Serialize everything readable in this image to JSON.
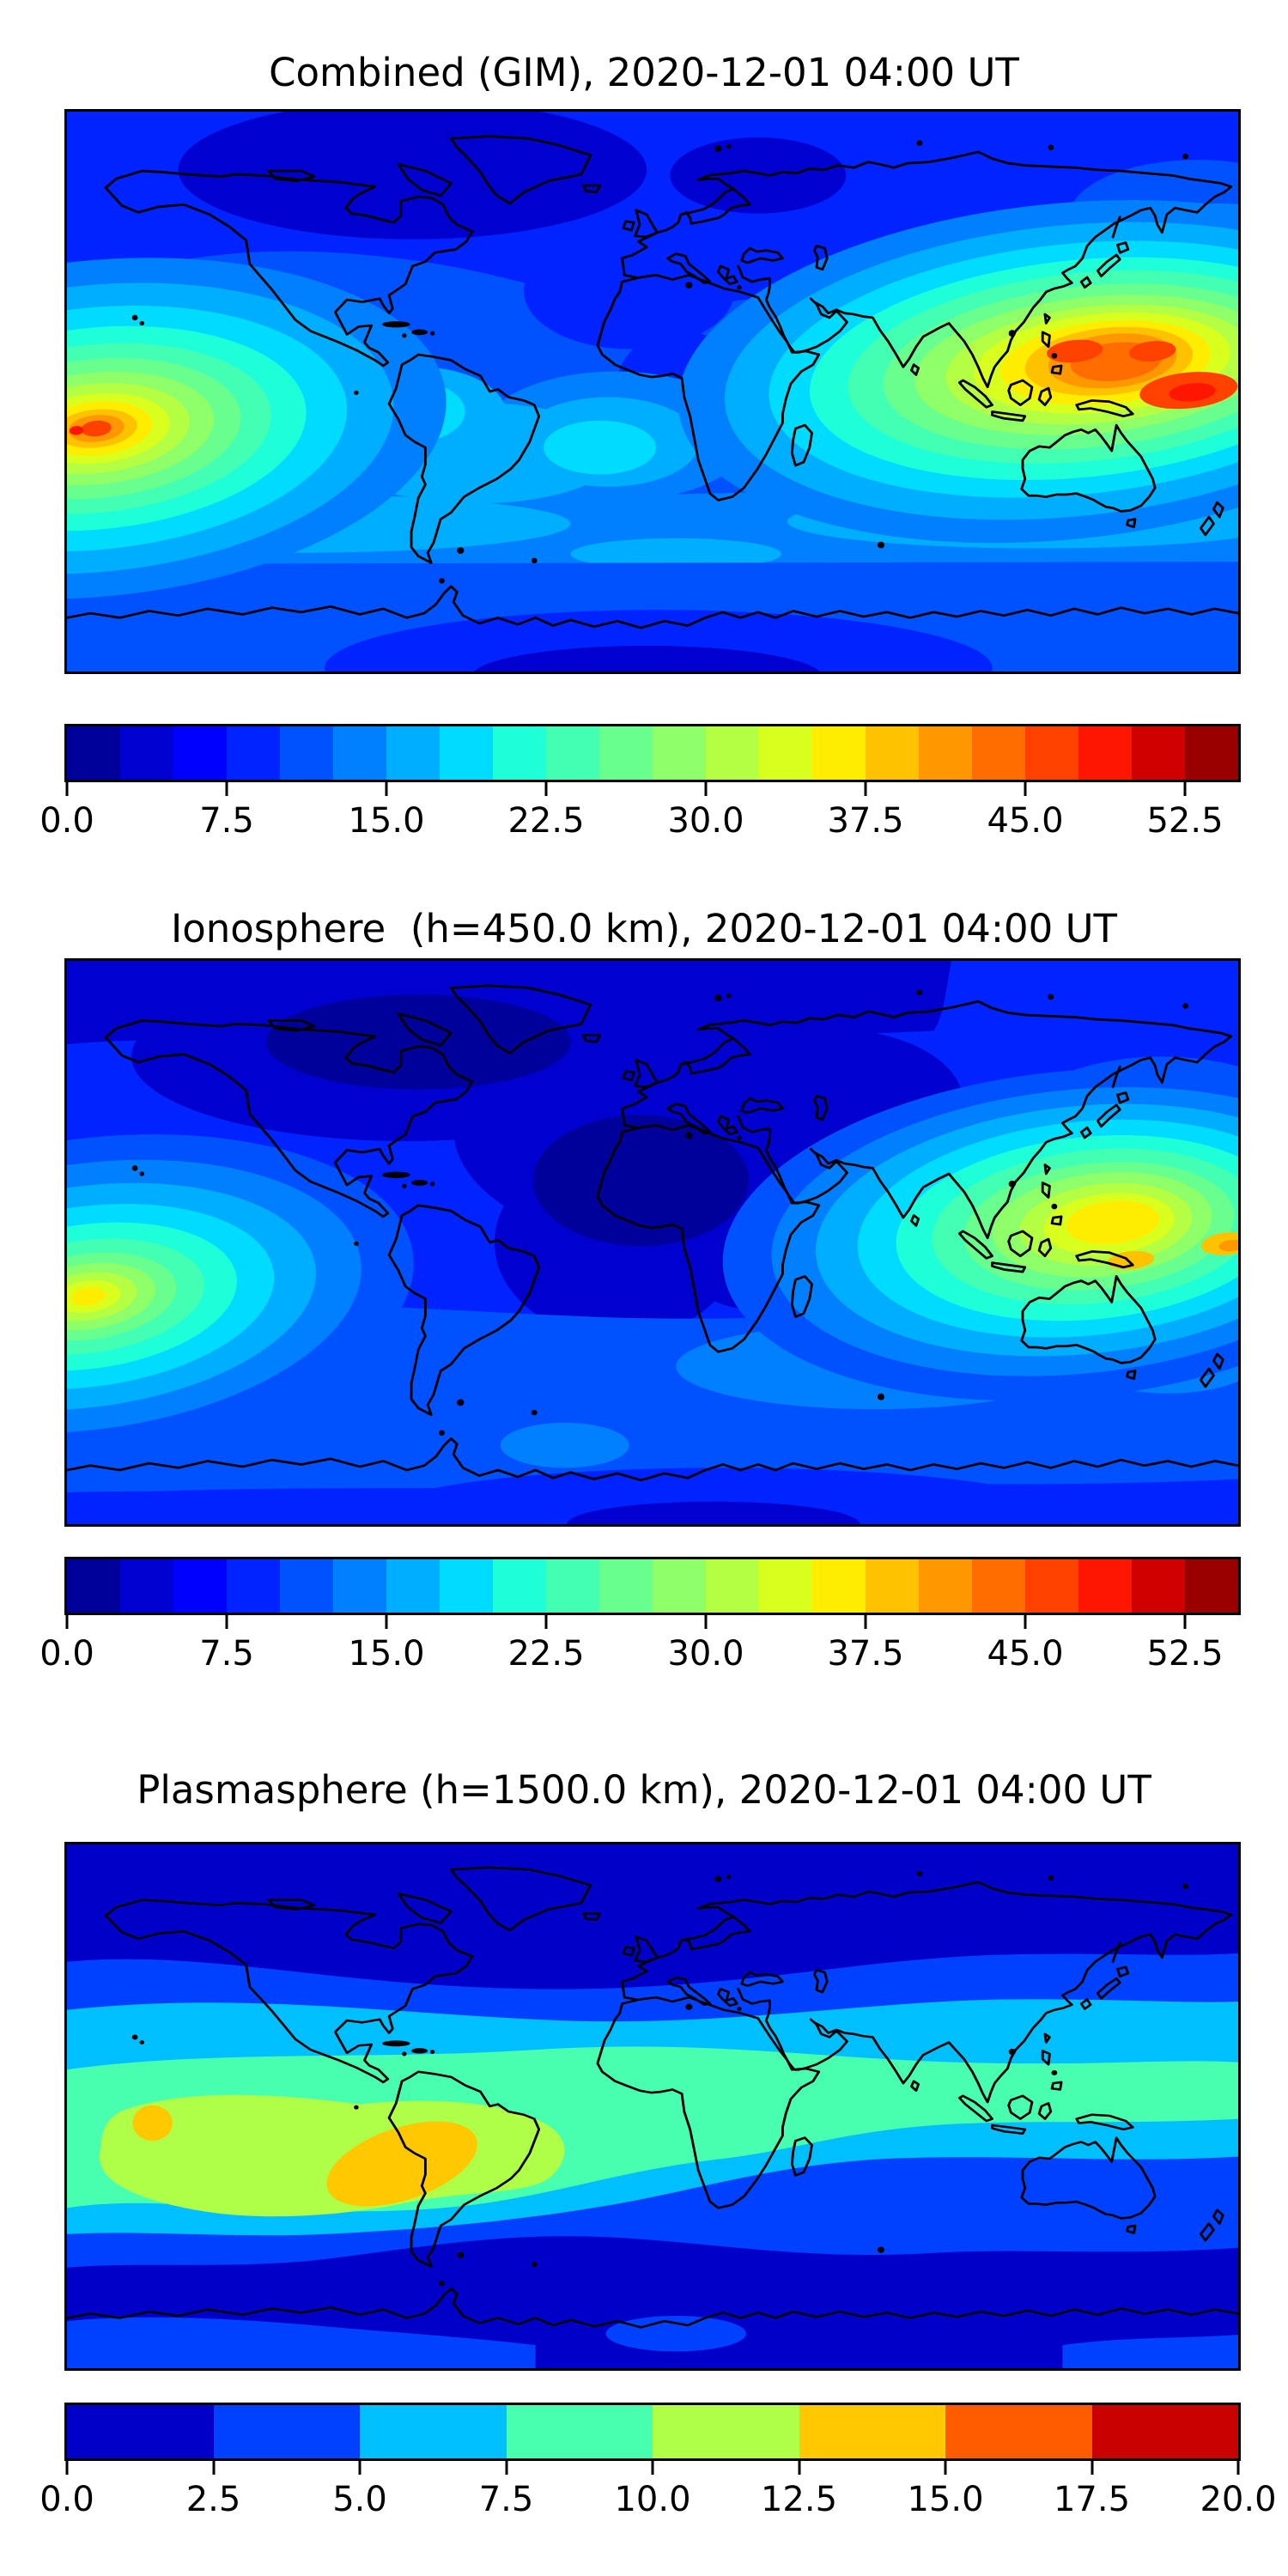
{
  "figure": {
    "background": "#ffffff",
    "text_color": "#000000",
    "coastline_color": "#000000"
  },
  "panels": [
    {
      "title": "Combined (GIM), 2020-12-01 04:00 UT",
      "colorbar": {
        "vmin": 0,
        "vmax": 55,
        "tick_values": [
          0,
          7.5,
          15,
          22.5,
          30,
          37.5,
          45,
          52.5
        ],
        "tick_labels": [
          "0.0",
          "7.5",
          "15.0",
          "22.5",
          "30.0",
          "37.5",
          "45.0",
          "52.5"
        ],
        "segment_colors": [
          "#00009A",
          "#0000CF",
          "#0000FF",
          "#0023FF",
          "#0051FF",
          "#0080FF",
          "#00AEFF",
          "#00DCFF",
          "#1EFFD9",
          "#43FFB4",
          "#69FF8E",
          "#8EFF69",
          "#B4FF43",
          "#D9FF1E",
          "#FFED00",
          "#FFC200",
          "#FF9700",
          "#FF6C00",
          "#FF4100",
          "#FF1600",
          "#CF0000",
          "#9A0000"
        ]
      }
    },
    {
      "title": "Ionosphere  (h=450.0 km), 2020-12-01 04:00 UT",
      "colorbar": {
        "vmin": 0,
        "vmax": 55,
        "tick_values": [
          0,
          7.5,
          15,
          22.5,
          30,
          37.5,
          45,
          52.5
        ],
        "tick_labels": [
          "0.0",
          "7.5",
          "15.0",
          "22.5",
          "30.0",
          "37.5",
          "45.0",
          "52.5"
        ],
        "segment_colors": [
          "#00009A",
          "#0000CF",
          "#0000FF",
          "#0023FF",
          "#0051FF",
          "#0080FF",
          "#00AEFF",
          "#00DCFF",
          "#1EFFD9",
          "#43FFB4",
          "#69FF8E",
          "#8EFF69",
          "#B4FF43",
          "#D9FF1E",
          "#FFED00",
          "#FFC200",
          "#FF9700",
          "#FF6C00",
          "#FF4100",
          "#FF1600",
          "#CF0000",
          "#9A0000"
        ]
      }
    },
    {
      "title": "Plasmasphere (h=1500.0 km), 2020-12-01 04:00 UT",
      "colorbar": {
        "vmin": 0,
        "vmax": 20,
        "tick_values": [
          0,
          2.5,
          5,
          7.5,
          10,
          12.5,
          15,
          17.5,
          20
        ],
        "tick_labels": [
          "0.0",
          "2.5",
          "5.0",
          "7.5",
          "10.0",
          "12.5",
          "15.0",
          "17.5",
          "20.0"
        ],
        "segment_colors": [
          "#0000C8",
          "#0040FF",
          "#00BFFF",
          "#48FFAF",
          "#AFFF48",
          "#FFC800",
          "#FF5C00",
          "#C80000"
        ]
      }
    }
  ],
  "chart_data": [
    {
      "type": "heatmap",
      "title": "Combined (GIM), 2020-12-01 04:00 UT",
      "colormap": "jet",
      "projection": "global equirectangular map with coastlines, lon -180..180, lat -90..90",
      "value_range": [
        0,
        55
      ],
      "contour_step": 2.5,
      "colorbar_ticks": [
        0,
        7.5,
        15,
        22.5,
        30,
        37.5,
        45,
        52.5
      ],
      "legend_position": "horizontal colorbar below map",
      "features": [
        {
          "label": "strong maximum over SE Asia / western Pacific (~120-180E, ~0-20N)",
          "approx_value": 50
        },
        {
          "label": "strong maximum in SE Pacific at left map edge (~180-150W, ~10-15S)",
          "approx_value": 48
        },
        {
          "label": "minimum over high northern latitudes (N Canada, Greenland, N Europe)",
          "approx_value": 3
        },
        {
          "label": "secondary minimum south of Antarctica coast (center-bottom)",
          "approx_value": 5
        }
      ]
    },
    {
      "type": "heatmap",
      "title": "Ionosphere  (h=450.0 km), 2020-12-01 04:00 UT",
      "colormap": "jet",
      "projection": "global equirectangular map with coastlines, lon -180..180, lat -90..90",
      "value_range": [
        0,
        55
      ],
      "contour_step": 2.5,
      "colorbar_ticks": [
        0,
        7.5,
        15,
        22.5,
        30,
        37.5,
        45,
        52.5
      ],
      "legend_position": "horizontal colorbar below map",
      "features": [
        {
          "label": "maximum over Indonesia / western Pacific with small orange cores",
          "approx_value": 40
        },
        {
          "label": "maximum in SE Pacific at left map edge",
          "approx_value": 37
        },
        {
          "label": "broad deep minimum over North America, Atlantic, Europe and Africa",
          "approx_value": 2
        }
      ]
    },
    {
      "type": "heatmap",
      "title": "Plasmasphere (h=1500.0 km), 2020-12-01 04:00 UT",
      "colormap": "jet",
      "projection": "global equirectangular map with coastlines, lon -180..180, lat -90..90",
      "value_range": [
        0,
        20
      ],
      "contour_step": 2.5,
      "colorbar_ticks": [
        0,
        2.5,
        5,
        7.5,
        10,
        12.5,
        15,
        17.5,
        20
      ],
      "legend_position": "horizontal colorbar below map",
      "features": [
        {
          "label": "equatorial teal band (~7.5-10) spanning all longitudes",
          "approx_value": 9
        },
        {
          "label": "yellow-green enhancement over SE Pacific and South America",
          "approx_value": 11
        },
        {
          "label": "two orange maxima near Peru/Brazil and ~140W",
          "approx_value": 14
        },
        {
          "label": "dark blue minima poleward of ~50 deg in both hemispheres",
          "approx_value": 2
        }
      ]
    }
  ]
}
